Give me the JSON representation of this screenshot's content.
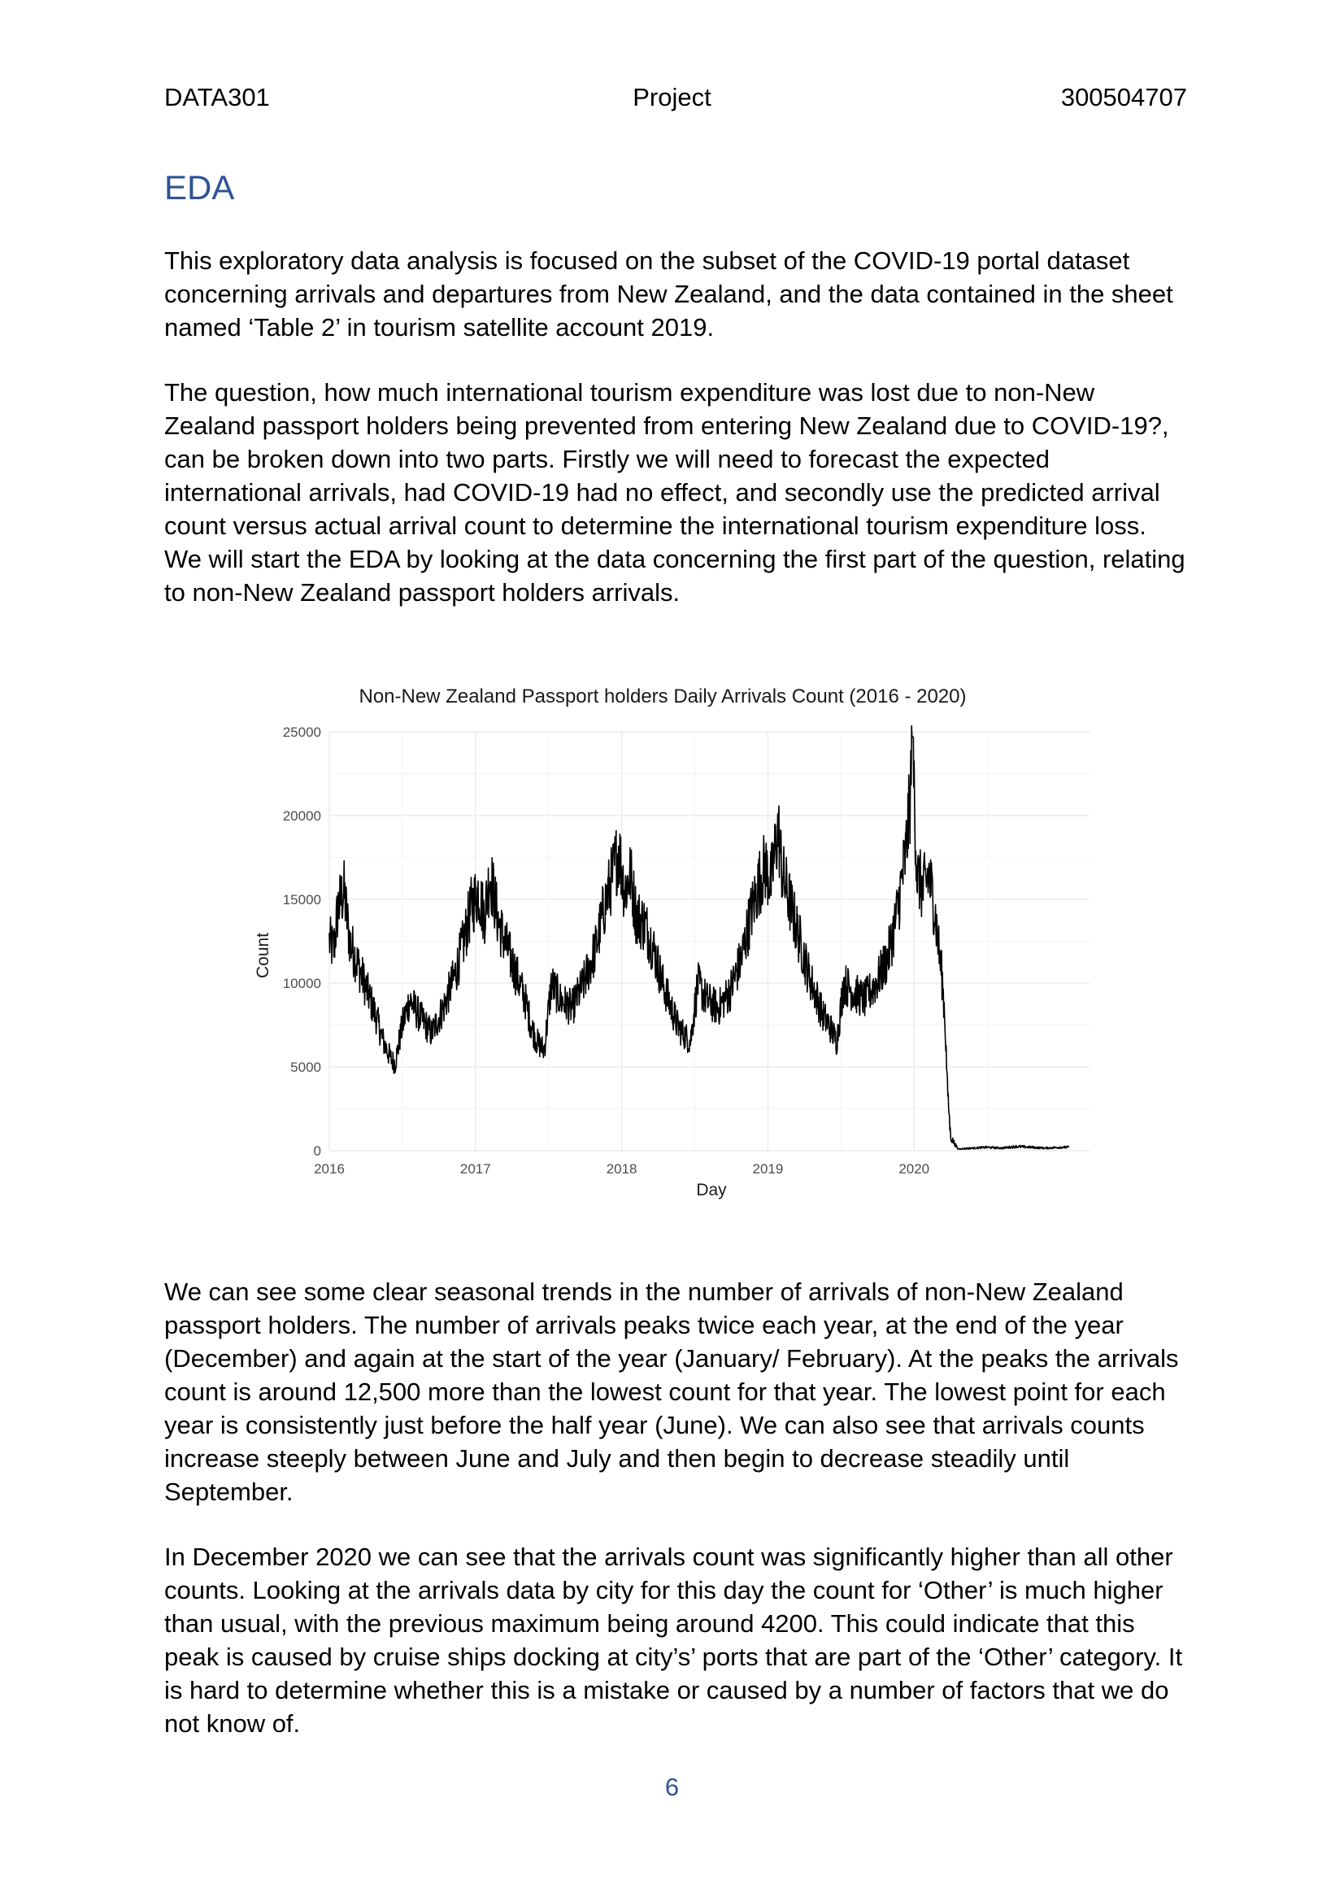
{
  "header": {
    "left": "DATA301",
    "center": "Project",
    "right": "300504707"
  },
  "section_title": "EDA",
  "paragraphs": {
    "p1": "This exploratory data analysis is focused on the subset of the COVID-19 portal dataset concerning arrivals and departures from New Zealand, and the data contained in the sheet named ‘Table 2’ in tourism satellite account 2019.",
    "p2": "The question, how much international tourism expenditure was lost due to non-New Zealand passport holders being prevented from entering New Zealand due to COVID-19?, can be broken down into two parts. Firstly we will need to forecast the expected international arrivals, had COVID-19 had no effect, and secondly use the predicted arrival count versus actual arrival count to determine the international tourism expenditure loss. We will start the EDA by looking at the data concerning the first part of the question, relating to non-New Zealand passport holders arrivals.",
    "p3": "We can see some clear seasonal trends in the number of arrivals of non-New Zealand passport holders. The number of arrivals peaks twice each year, at the end of the year (December) and again at the start of the year (January/ February). At the peaks the arrivals count is around 12,500 more than the lowest count for that year. The lowest point for each year is consistently just before the half year (June). We can also see that arrivals counts increase steeply between June and July and then begin to decrease steadily until September.",
    "p4": "In December 2020 we can see that the arrivals count was significantly higher than all other counts. Looking at the arrivals data by city for this day the count for ‘Other’ is much higher than usual, with the previous maximum being around 4200. This could indicate that this peak is caused by cruise ships docking at city’s’ ports that are part of the ‘Other’ category. It is hard to determine whether this is a mistake or caused by a number of factors that we do not know of."
  },
  "page_number": "6",
  "chart_data": {
    "type": "line",
    "title": "Non-New Zealand Passport holders Daily Arrivals Count (2016 - 2020)",
    "xlabel": "Day",
    "ylabel": "Count",
    "x_ticks": [
      "2016",
      "2017",
      "2018",
      "2019",
      "2020"
    ],
    "y_ticks": [
      0,
      5000,
      10000,
      15000,
      20000,
      25000
    ],
    "xlim": [
      2016,
      2021.2
    ],
    "ylim": [
      0,
      25000
    ],
    "grid": true,
    "line_color": "#000000",
    "series": [
      {
        "x": [
          2016.0,
          2016.03,
          2016.06,
          2016.1,
          2016.14,
          2016.2,
          2016.26,
          2016.32,
          2016.37,
          2016.42,
          2016.45,
          2016.5,
          2016.55,
          2016.62,
          2016.7,
          2016.78,
          2016.86,
          2016.92,
          2016.97,
          2017.02,
          2017.06,
          2017.1,
          2017.16,
          2017.22,
          2017.28,
          2017.34,
          2017.38,
          2017.42,
          2017.47,
          2017.52,
          2017.58,
          2017.66,
          2017.74,
          2017.82,
          2017.88,
          2017.94,
          2017.98,
          2018.02,
          2018.06,
          2018.1,
          2018.16,
          2018.22,
          2018.28,
          2018.34,
          2018.38,
          2018.42,
          2018.47,
          2018.52,
          2018.58,
          2018.66,
          2018.74,
          2018.82,
          2018.88,
          2018.94,
          2018.98,
          2019.02,
          2019.07,
          2019.1,
          2019.16,
          2019.22,
          2019.28,
          2019.34,
          2019.38,
          2019.42,
          2019.47,
          2019.52,
          2019.58,
          2019.66,
          2019.74,
          2019.82,
          2019.88,
          2019.94,
          2019.97,
          2019.99,
          2020.02,
          2020.06,
          2020.1,
          2020.14,
          2020.17,
          2020.19,
          2020.21,
          2020.23,
          2020.25,
          2020.3,
          2020.4,
          2020.5,
          2020.6,
          2020.7,
          2020.8,
          2020.9,
          2021.0,
          2021.06
        ],
        "values": [
          12500,
          12000,
          14500,
          15500,
          12500,
          11000,
          9500,
          8000,
          6500,
          5500,
          5200,
          7500,
          9000,
          8000,
          7000,
          8500,
          10500,
          12500,
          14500,
          15500,
          14000,
          16500,
          13500,
          12000,
          10500,
          9000,
          7500,
          6500,
          6000,
          10000,
          9000,
          8500,
          10000,
          12000,
          14500,
          16500,
          18000,
          15500,
          16500,
          14000,
          13500,
          12000,
          10000,
          8500,
          7500,
          7000,
          6500,
          10000,
          9000,
          8500,
          9500,
          11500,
          14000,
          16000,
          17000,
          16000,
          19200,
          16500,
          14500,
          12500,
          10500,
          9000,
          8000,
          7500,
          6500,
          10000,
          9500,
          9000,
          10000,
          11500,
          14000,
          17500,
          20500,
          24500,
          16500,
          15500,
          16500,
          14500,
          12000,
          10500,
          8000,
          3500,
          800,
          100,
          150,
          200,
          150,
          250,
          200,
          150,
          200,
          200
        ]
      }
    ]
  }
}
